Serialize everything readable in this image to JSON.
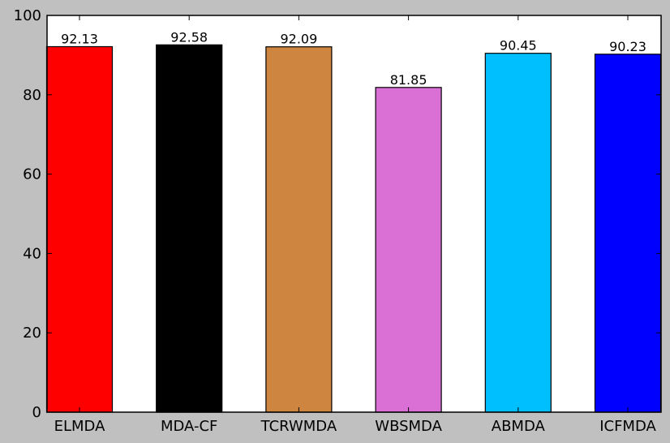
{
  "chart_data": {
    "type": "bar",
    "title": "",
    "xlabel": "",
    "ylabel": "",
    "categories": [
      "ELMDA",
      "MDA-CF",
      "TCRWMDA",
      "WBSMDA",
      "ABMDA",
      "ICFMDA"
    ],
    "values": [
      92.13,
      92.58,
      92.09,
      81.85,
      90.45,
      90.23
    ],
    "value_labels": [
      "92.13",
      "92.58",
      "92.09",
      "81.85",
      "90.45",
      "90.23"
    ],
    "colors": [
      "#ff0000",
      "#000000",
      "#cd853f",
      "#da70d6",
      "#00bfff",
      "#0000ff"
    ],
    "ylim": [
      0,
      100
    ],
    "yticks": [
      0,
      20,
      40,
      60,
      80,
      100
    ],
    "ytick_labels": [
      "0",
      "20",
      "40",
      "60",
      "80",
      "100"
    ],
    "grid": false,
    "legend": "none",
    "plot_background": "#ffffff",
    "figure_background": "#c0c0c0"
  }
}
